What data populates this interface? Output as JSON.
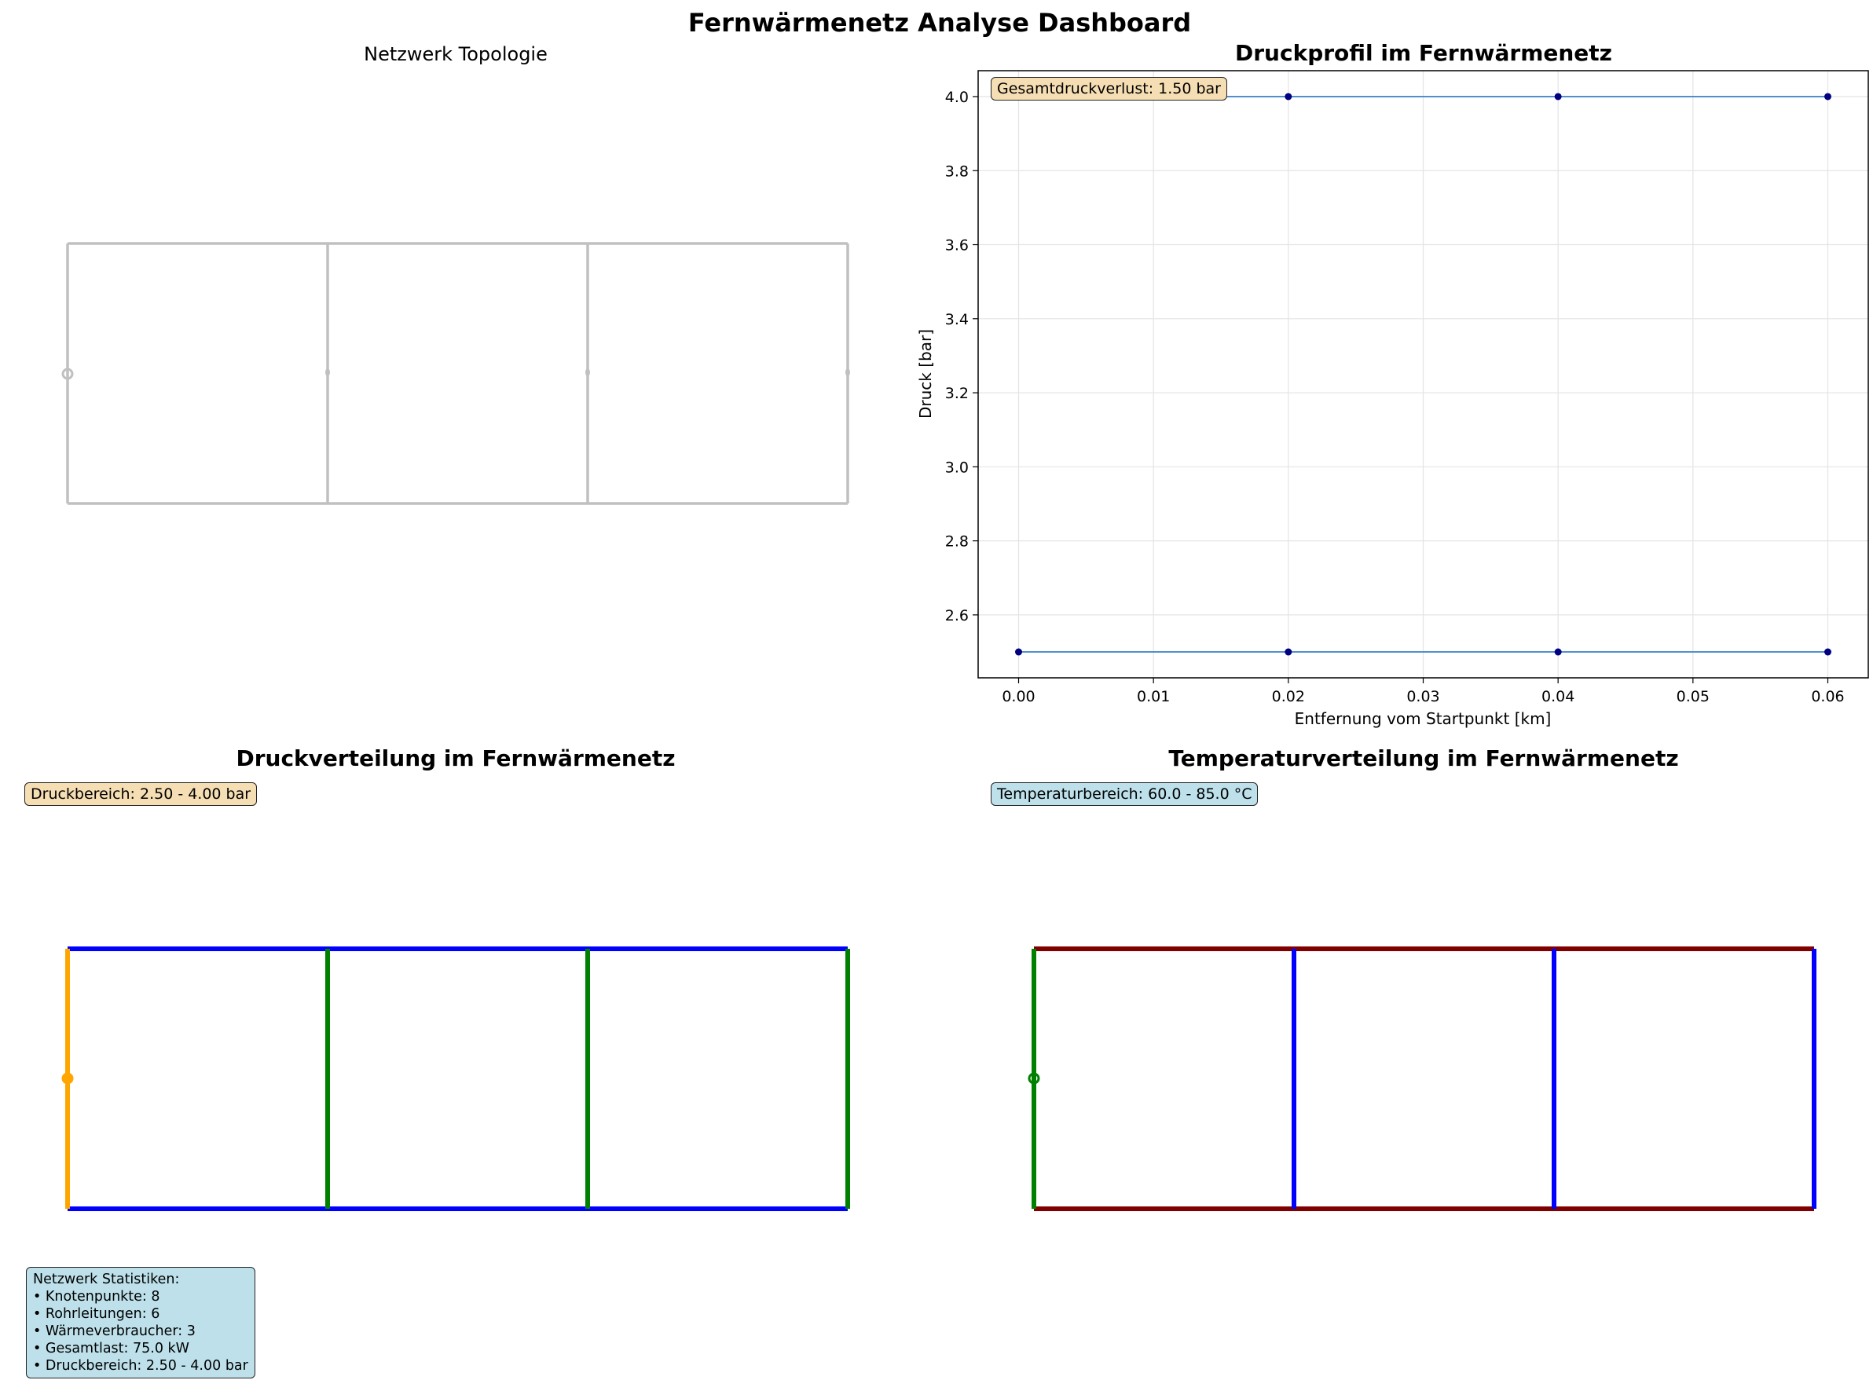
{
  "suptitle": "Fernwärmenetz Analyse Dashboard",
  "topology": {
    "title": "Netzwerk Topologie",
    "edge_color": "#c0c0c0"
  },
  "pressure_profile": {
    "title": "Druckprofil im Fernwärmenetz",
    "xlabel": "Entfernung vom Startpunkt [km]",
    "ylabel": "Druck [bar]",
    "annotation": "Gesamtdruckverlust: 1.50 bar",
    "line_color": "#3b7fc4",
    "marker_color": "#000080"
  },
  "pressure_dist": {
    "title": "Druckverteilung im Fernwärmenetz",
    "annotation": "Druckbereich: 2.50 - 4.00 bar",
    "colors": {
      "supply": "#0000ff",
      "risers": "#008000",
      "source": "#ffa500"
    }
  },
  "temperature_dist": {
    "title": "Temperaturverteilung im Fernwärmenetz",
    "annotation": "Temperaturbereich: 60.0 - 85.0 °C",
    "colors": {
      "supply": "#800000",
      "risers": "#0000ff",
      "source": "#008000"
    }
  },
  "stats": {
    "lines": [
      "Netzwerk Statistiken:",
      "• Knotenpunkte: 8",
      "• Rohrleitungen: 6",
      "• Wärmeverbraucher: 3",
      "• Gesamtlast: 75.0 kW",
      "• Druckbereich: 2.50 - 4.00 bar"
    ]
  },
  "chart_data": [
    {
      "type": "line",
      "title": "Druckprofil im Fernwärmenetz",
      "xlabel": "Entfernung vom Startpunkt [km]",
      "ylabel": "Druck [bar]",
      "xlim": [
        -0.003,
        0.063
      ],
      "ylim": [
        2.43,
        4.07
      ],
      "xticks": [
        "0.00",
        "0.01",
        "0.02",
        "0.03",
        "0.04",
        "0.05",
        "0.06"
      ],
      "yticks": [
        "2.6",
        "2.8",
        "3.0",
        "3.2",
        "3.4",
        "3.6",
        "3.8",
        "4.0"
      ],
      "grid": true,
      "series": [
        {
          "x": [
            0.0,
            0.02,
            0.04,
            0.06
          ],
          "y": [
            4.0,
            4.0,
            4.0,
            4.0
          ]
        },
        {
          "x": [
            0.0,
            0.02,
            0.04,
            0.06
          ],
          "y": [
            2.5,
            2.5,
            2.5,
            2.5
          ]
        }
      ]
    }
  ]
}
